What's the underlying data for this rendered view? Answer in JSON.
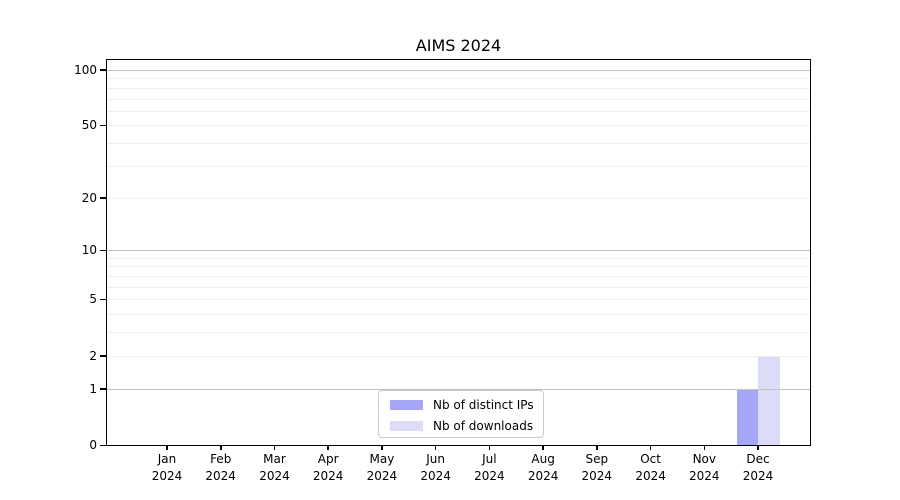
{
  "title": "AIMS 2024",
  "legend": {
    "items": [
      {
        "label": "Nb of distinct IPs",
        "color": "#a6a6f7"
      },
      {
        "label": "Nb of downloads",
        "color": "#dcdcf8"
      }
    ]
  },
  "chart_data": {
    "type": "bar",
    "title": "AIMS 2024",
    "categories": [
      "Jan 2024",
      "Feb 2024",
      "Mar 2024",
      "Apr 2024",
      "May 2024",
      "Jun 2024",
      "Jul 2024",
      "Aug 2024",
      "Sep 2024",
      "Oct 2024",
      "Nov 2024",
      "Dec 2024"
    ],
    "series": [
      {
        "name": "Nb of distinct IPs",
        "color": "#a6a6f7",
        "values": [
          0,
          0,
          0,
          0,
          0,
          0,
          0,
          0,
          0,
          0,
          0,
          1
        ]
      },
      {
        "name": "Nb of downloads",
        "color": "#dcdcf8",
        "values": [
          0,
          0,
          0,
          0,
          0,
          0,
          0,
          0,
          0,
          0,
          0,
          2
        ]
      }
    ],
    "xlabel": "",
    "ylabel": "",
    "y_scale": "log1p",
    "ylim": [
      0,
      113
    ],
    "y_ticks": [
      100,
      50,
      20,
      10,
      5,
      2,
      1,
      0
    ],
    "grid": {
      "major": [
        1,
        10,
        100
      ],
      "minor": [
        2,
        3,
        4,
        5,
        6,
        7,
        8,
        9,
        20,
        30,
        40,
        50,
        60,
        70,
        80,
        90
      ]
    },
    "legend_position": "lower center",
    "bar_values": {
      "Dec 2024": {
        "Nb of distinct IPs": 1,
        "Nb of downloads": 2
      }
    }
  }
}
